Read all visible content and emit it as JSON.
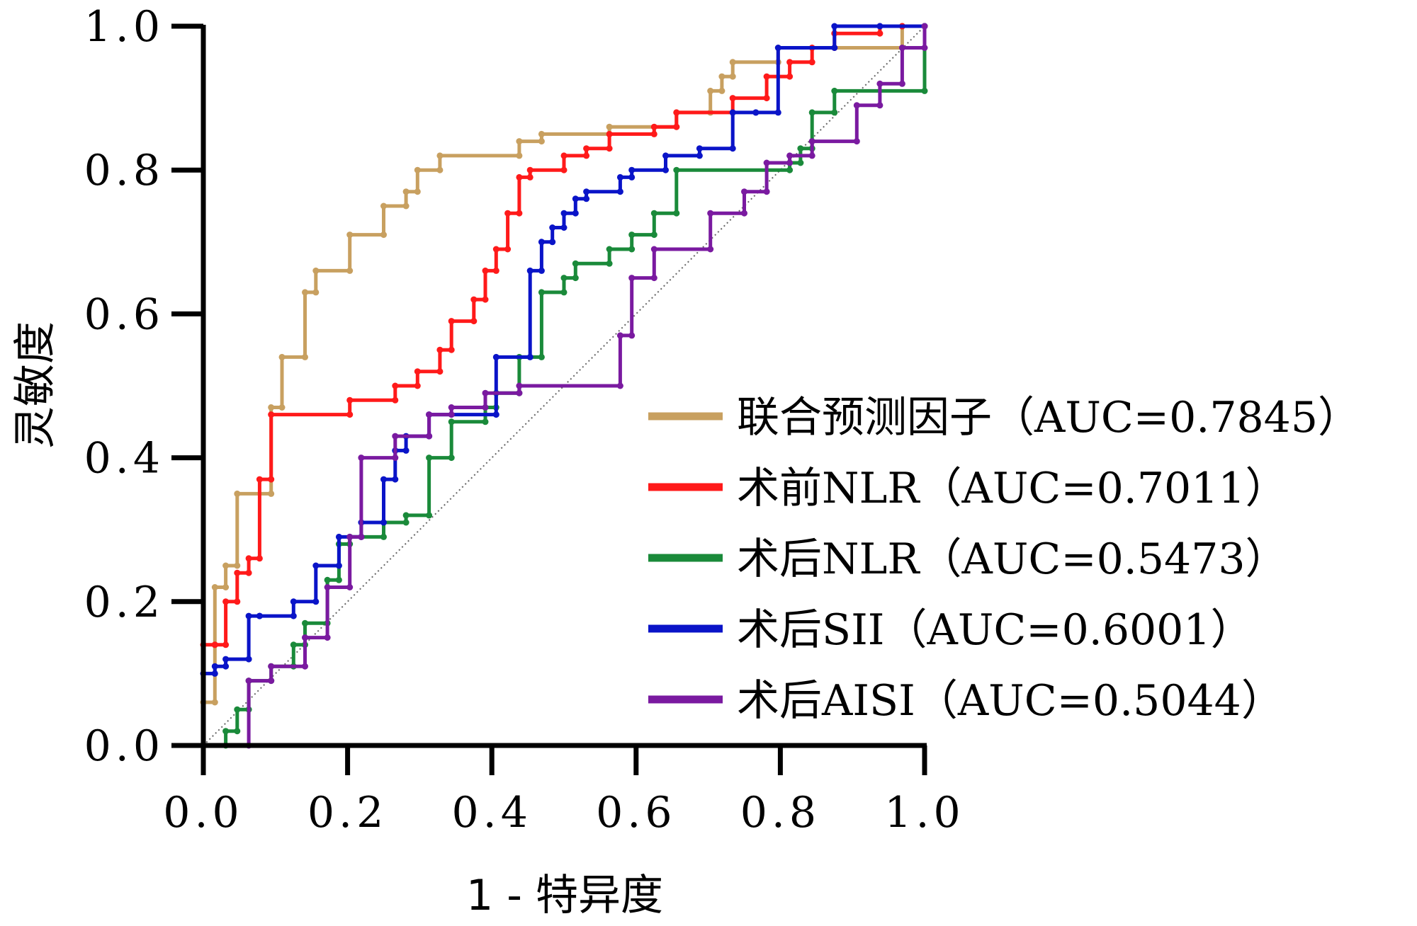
{
  "chart_data": {
    "type": "line",
    "xlabel": "1 - 特异度",
    "ylabel": "灵敏度",
    "xlim": [
      0,
      1
    ],
    "ylim": [
      0,
      1
    ],
    "xticks": [
      "0.0",
      "0.2",
      "0.4",
      "0.6",
      "0.8",
      "1.0"
    ],
    "yticks": [
      "0.0",
      "0.2",
      "0.4",
      "0.6",
      "0.8",
      "1.0"
    ],
    "legend_position": "lower-right",
    "reference_line": {
      "x": [
        0,
        1
      ],
      "y": [
        0,
        1
      ],
      "style": "dotted"
    },
    "series": [
      {
        "name": "联合预测因子（AUC=0.7845）",
        "color": "#c8a060",
        "x": [
          0,
          0,
          0.016,
          0.016,
          0.031,
          0.031,
          0.047,
          0.047,
          0.094,
          0.094,
          0.109,
          0.109,
          0.141,
          0.141,
          0.156,
          0.156,
          0.203,
          0.203,
          0.25,
          0.25,
          0.281,
          0.281,
          0.297,
          0.297,
          0.328,
          0.328,
          0.438,
          0.438,
          0.469,
          0.469,
          0.563,
          0.563,
          0.656,
          0.656,
          0.703,
          0.703,
          0.719,
          0.719,
          0.734,
          0.734,
          0.797,
          0.797,
          0.969,
          0.969,
          1.0
        ],
        "y": [
          0,
          0.06,
          0.06,
          0.22,
          0.22,
          0.25,
          0.25,
          0.35,
          0.35,
          0.47,
          0.47,
          0.54,
          0.54,
          0.63,
          0.63,
          0.66,
          0.66,
          0.71,
          0.71,
          0.75,
          0.75,
          0.77,
          0.77,
          0.8,
          0.8,
          0.82,
          0.82,
          0.84,
          0.84,
          0.85,
          0.85,
          0.86,
          0.86,
          0.88,
          0.88,
          0.91,
          0.91,
          0.93,
          0.93,
          0.95,
          0.95,
          0.97,
          0.97,
          1.0,
          1.0
        ]
      },
      {
        "name": "术前NLR（AUC=0.7011）",
        "color": "#ff1a1a",
        "x": [
          0,
          0,
          0.016,
          0.016,
          0.031,
          0.031,
          0.047,
          0.047,
          0.063,
          0.063,
          0.078,
          0.078,
          0.094,
          0.094,
          0.203,
          0.203,
          0.266,
          0.266,
          0.297,
          0.297,
          0.328,
          0.328,
          0.344,
          0.344,
          0.375,
          0.375,
          0.391,
          0.391,
          0.406,
          0.406,
          0.422,
          0.422,
          0.438,
          0.438,
          0.453,
          0.453,
          0.5,
          0.5,
          0.531,
          0.531,
          0.563,
          0.563,
          0.625,
          0.625,
          0.656,
          0.656,
          0.734,
          0.734,
          0.781,
          0.781,
          0.813,
          0.813,
          0.844,
          0.844,
          0.875,
          0.875,
          0.938,
          0.938,
          0.969,
          0.969,
          1.0
        ],
        "y": [
          0,
          0.14,
          0.14,
          0.14,
          0.14,
          0.2,
          0.2,
          0.24,
          0.24,
          0.26,
          0.26,
          0.37,
          0.37,
          0.46,
          0.46,
          0.48,
          0.48,
          0.5,
          0.5,
          0.52,
          0.52,
          0.55,
          0.55,
          0.59,
          0.59,
          0.62,
          0.62,
          0.66,
          0.66,
          0.69,
          0.69,
          0.74,
          0.74,
          0.79,
          0.79,
          0.8,
          0.8,
          0.82,
          0.82,
          0.83,
          0.83,
          0.85,
          0.85,
          0.86,
          0.86,
          0.88,
          0.88,
          0.9,
          0.9,
          0.93,
          0.93,
          0.95,
          0.95,
          0.97,
          0.97,
          0.99,
          0.99,
          1.0,
          1.0,
          1.0,
          1.0
        ]
      },
      {
        "name": "术后NLR（AUC=0.5473）",
        "color": "#1a8a3a",
        "x": [
          0,
          0.031,
          0.031,
          0.047,
          0.047,
          0.063,
          0.063,
          0.094,
          0.094,
          0.125,
          0.125,
          0.141,
          0.141,
          0.172,
          0.172,
          0.188,
          0.188,
          0.203,
          0.203,
          0.25,
          0.25,
          0.281,
          0.281,
          0.313,
          0.313,
          0.344,
          0.344,
          0.391,
          0.391,
          0.406,
          0.406,
          0.438,
          0.438,
          0.469,
          0.469,
          0.5,
          0.5,
          0.516,
          0.516,
          0.563,
          0.563,
          0.594,
          0.594,
          0.625,
          0.625,
          0.656,
          0.656,
          0.813,
          0.813,
          0.828,
          0.828,
          0.844,
          0.844,
          0.875,
          0.875,
          1.0,
          1.0
        ],
        "y": [
          0,
          0,
          0.02,
          0.02,
          0.05,
          0.05,
          0.09,
          0.09,
          0.11,
          0.11,
          0.14,
          0.14,
          0.17,
          0.17,
          0.23,
          0.23,
          0.28,
          0.28,
          0.29,
          0.29,
          0.31,
          0.31,
          0.32,
          0.32,
          0.4,
          0.4,
          0.45,
          0.45,
          0.47,
          0.47,
          0.49,
          0.49,
          0.54,
          0.54,
          0.63,
          0.63,
          0.65,
          0.65,
          0.67,
          0.67,
          0.69,
          0.69,
          0.71,
          0.71,
          0.74,
          0.74,
          0.8,
          0.8,
          0.81,
          0.81,
          0.83,
          0.83,
          0.88,
          0.88,
          0.91,
          0.91,
          1.0
        ]
      },
      {
        "name": "术后SII（AUC=0.6001）",
        "color": "#0a14c8",
        "x": [
          0,
          0,
          0.016,
          0.016,
          0.031,
          0.031,
          0.063,
          0.063,
          0.078,
          0.078,
          0.125,
          0.125,
          0.156,
          0.156,
          0.188,
          0.188,
          0.219,
          0.219,
          0.25,
          0.25,
          0.266,
          0.266,
          0.281,
          0.281,
          0.313,
          0.313,
          0.406,
          0.406,
          0.453,
          0.453,
          0.469,
          0.469,
          0.484,
          0.484,
          0.5,
          0.5,
          0.516,
          0.516,
          0.531,
          0.531,
          0.578,
          0.578,
          0.594,
          0.594,
          0.641,
          0.641,
          0.688,
          0.688,
          0.734,
          0.734,
          0.766,
          0.766,
          0.797,
          0.797,
          0.875,
          0.875,
          0.938,
          0.938,
          1.0
        ],
        "y": [
          0,
          0.1,
          0.1,
          0.11,
          0.11,
          0.12,
          0.12,
          0.18,
          0.18,
          0.18,
          0.18,
          0.2,
          0.2,
          0.25,
          0.25,
          0.29,
          0.29,
          0.31,
          0.31,
          0.37,
          0.37,
          0.41,
          0.41,
          0.43,
          0.43,
          0.46,
          0.46,
          0.54,
          0.54,
          0.66,
          0.66,
          0.7,
          0.7,
          0.72,
          0.72,
          0.74,
          0.74,
          0.76,
          0.76,
          0.77,
          0.77,
          0.79,
          0.79,
          0.8,
          0.8,
          0.82,
          0.82,
          0.83,
          0.83,
          0.88,
          0.88,
          0.88,
          0.88,
          0.97,
          0.97,
          1.0,
          1.0,
          1.0,
          1.0
        ]
      },
      {
        "name": "术后AISI（AUC=0.5044）",
        "color": "#7a1aa0",
        "x": [
          0,
          0.063,
          0.063,
          0.094,
          0.094,
          0.141,
          0.141,
          0.172,
          0.172,
          0.203,
          0.203,
          0.219,
          0.219,
          0.266,
          0.266,
          0.313,
          0.313,
          0.344,
          0.344,
          0.391,
          0.391,
          0.438,
          0.438,
          0.578,
          0.578,
          0.594,
          0.594,
          0.625,
          0.625,
          0.703,
          0.703,
          0.75,
          0.75,
          0.781,
          0.781,
          0.813,
          0.813,
          0.844,
          0.844,
          0.906,
          0.906,
          0.938,
          0.938,
          0.969,
          0.969,
          1.0,
          1.0
        ],
        "y": [
          0,
          0,
          0.09,
          0.09,
          0.11,
          0.11,
          0.15,
          0.15,
          0.22,
          0.22,
          0.29,
          0.29,
          0.4,
          0.4,
          0.43,
          0.43,
          0.46,
          0.46,
          0.47,
          0.47,
          0.49,
          0.49,
          0.5,
          0.5,
          0.57,
          0.57,
          0.65,
          0.65,
          0.69,
          0.69,
          0.74,
          0.74,
          0.77,
          0.77,
          0.81,
          0.81,
          0.82,
          0.82,
          0.84,
          0.84,
          0.89,
          0.89,
          0.92,
          0.92,
          0.97,
          0.97,
          1.0
        ]
      }
    ]
  }
}
